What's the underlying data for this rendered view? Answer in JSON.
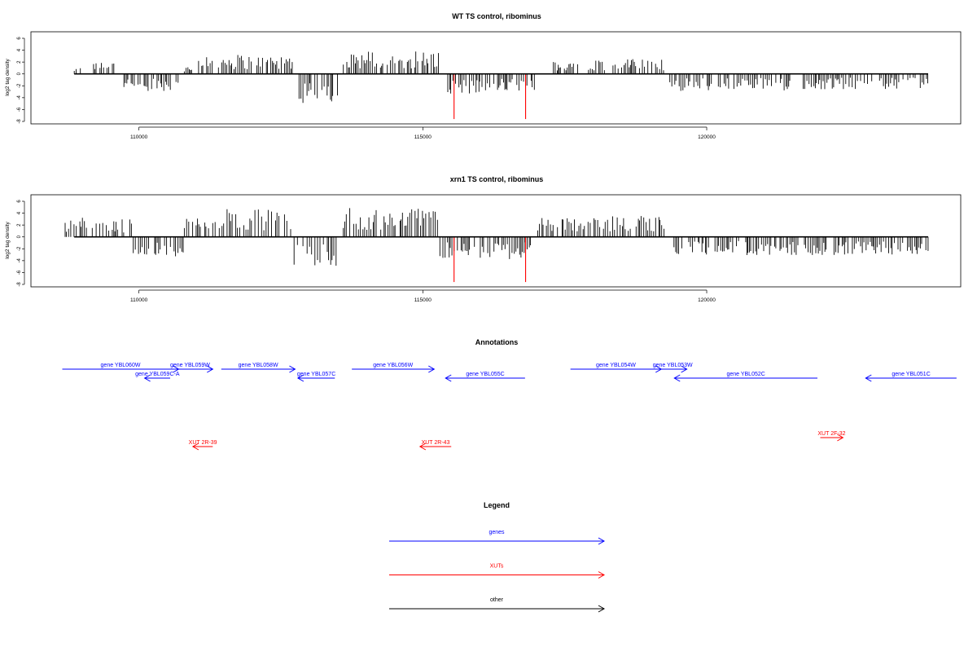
{
  "colors": {
    "gene": "#0000ff",
    "xut": "#ff0000",
    "other": "#000000",
    "highlight": "#ff0000",
    "bar": "#000000"
  },
  "chart_data": [
    {
      "type": "bar",
      "title": "WT TS control, ribominus",
      "ylabel": "log2 tag density",
      "xlim": [
        108700,
        124400
      ],
      "ylim": [
        -8,
        6
      ],
      "xticks": [
        110000,
        115000,
        120000
      ],
      "yticks": [
        6,
        4,
        2,
        0,
        -2,
        -4,
        -6,
        -8
      ],
      "grid": false,
      "highlights": [
        {
          "x": 115550,
          "value": -7.6
        },
        {
          "x": 116810,
          "value": -7.6
        }
      ],
      "regions": [
        {
          "start": 108860,
          "end": 109000,
          "value": 1.0
        },
        {
          "start": 109200,
          "end": 109600,
          "value": 1.8
        },
        {
          "start": 109700,
          "end": 110700,
          "value": -2.6
        },
        {
          "start": 110800,
          "end": 111000,
          "value": 1.2
        },
        {
          "start": 111050,
          "end": 111300,
          "value": 2.6
        },
        {
          "start": 111400,
          "end": 112700,
          "value": 3.0
        },
        {
          "start": 112800,
          "end": 113500,
          "value": -4.5
        },
        {
          "start": 113600,
          "end": 115300,
          "value": 3.5
        },
        {
          "start": 115400,
          "end": 116000,
          "value": -3.0
        },
        {
          "start": 116000,
          "end": 117000,
          "value": -2.6
        },
        {
          "start": 117300,
          "end": 119300,
          "value": 2.3
        },
        {
          "start": 119350,
          "end": 121500,
          "value": -2.6
        },
        {
          "start": 121700,
          "end": 123900,
          "value": -2.4
        }
      ]
    },
    {
      "type": "bar",
      "title": "xrn1 TS control, ribominus",
      "ylabel": "log2 tag density",
      "xlim": [
        108700,
        124400
      ],
      "ylim": [
        -8,
        6
      ],
      "xticks": [
        110000,
        115000,
        120000
      ],
      "yticks": [
        6,
        4,
        2,
        0,
        -2,
        -4,
        -6,
        -8
      ],
      "grid": false,
      "highlights": [
        {
          "x": 115550,
          "value": -7.6
        },
        {
          "x": 116810,
          "value": -7.6
        }
      ],
      "regions": [
        {
          "start": 108700,
          "end": 109900,
          "value": 3.0
        },
        {
          "start": 109900,
          "end": 110800,
          "value": -3.2
        },
        {
          "start": 110800,
          "end": 111250,
          "value": 3.0
        },
        {
          "start": 111300,
          "end": 112700,
          "value": 4.3
        },
        {
          "start": 112700,
          "end": 113500,
          "value": -4.5
        },
        {
          "start": 113600,
          "end": 115300,
          "value": 4.5
        },
        {
          "start": 115300,
          "end": 117000,
          "value": -3.5
        },
        {
          "start": 117000,
          "end": 119300,
          "value": 3.2
        },
        {
          "start": 119350,
          "end": 123900,
          "value": -2.8
        }
      ]
    }
  ],
  "annotations": {
    "title": "Annotations",
    "items": [
      {
        "label": "gene YBL060W",
        "type": "gene",
        "start": 108650,
        "end": 110700,
        "direction": "right"
      },
      {
        "label": "gene YBL059W",
        "type": "gene",
        "start": 110500,
        "end": 111300,
        "direction": "right"
      },
      {
        "label": "gene YBL059C-A",
        "type": "gene",
        "start": 110100,
        "end": 110550,
        "direction": "left"
      },
      {
        "label": "gene YBL058W",
        "type": "gene",
        "start": 111450,
        "end": 112750,
        "direction": "right"
      },
      {
        "label": "gene YBL057C",
        "type": "gene",
        "start": 112800,
        "end": 113450,
        "direction": "left"
      },
      {
        "label": "gene YBL056W",
        "type": "gene",
        "start": 113750,
        "end": 115200,
        "direction": "right"
      },
      {
        "label": "gene YBL055C",
        "type": "gene",
        "start": 115400,
        "end": 116800,
        "direction": "left"
      },
      {
        "label": "gene YBL054W",
        "type": "gene",
        "start": 117600,
        "end": 119200,
        "direction": "right"
      },
      {
        "label": "gene YBL053W",
        "type": "gene",
        "start": 119150,
        "end": 119650,
        "direction": "right"
      },
      {
        "label": "gene YBL052C",
        "type": "gene",
        "start": 119430,
        "end": 121950,
        "direction": "left"
      },
      {
        "label": "gene YBL051C",
        "type": "gene",
        "start": 122800,
        "end": 124400,
        "direction": "left"
      },
      {
        "label": "XUT 2R-39",
        "type": "xut",
        "start": 110950,
        "end": 111300,
        "direction": "left"
      },
      {
        "label": "XUT 2R-43",
        "type": "xut",
        "start": 114950,
        "end": 115500,
        "direction": "left"
      },
      {
        "label": "XUT 2F-32",
        "type": "xut",
        "start": 122000,
        "end": 122400,
        "direction": "right"
      }
    ]
  },
  "legend": {
    "title": "Legend",
    "items": [
      {
        "label": "genes",
        "type": "gene"
      },
      {
        "label": "XUTs",
        "type": "xut"
      },
      {
        "label": "other",
        "type": "other"
      }
    ]
  }
}
